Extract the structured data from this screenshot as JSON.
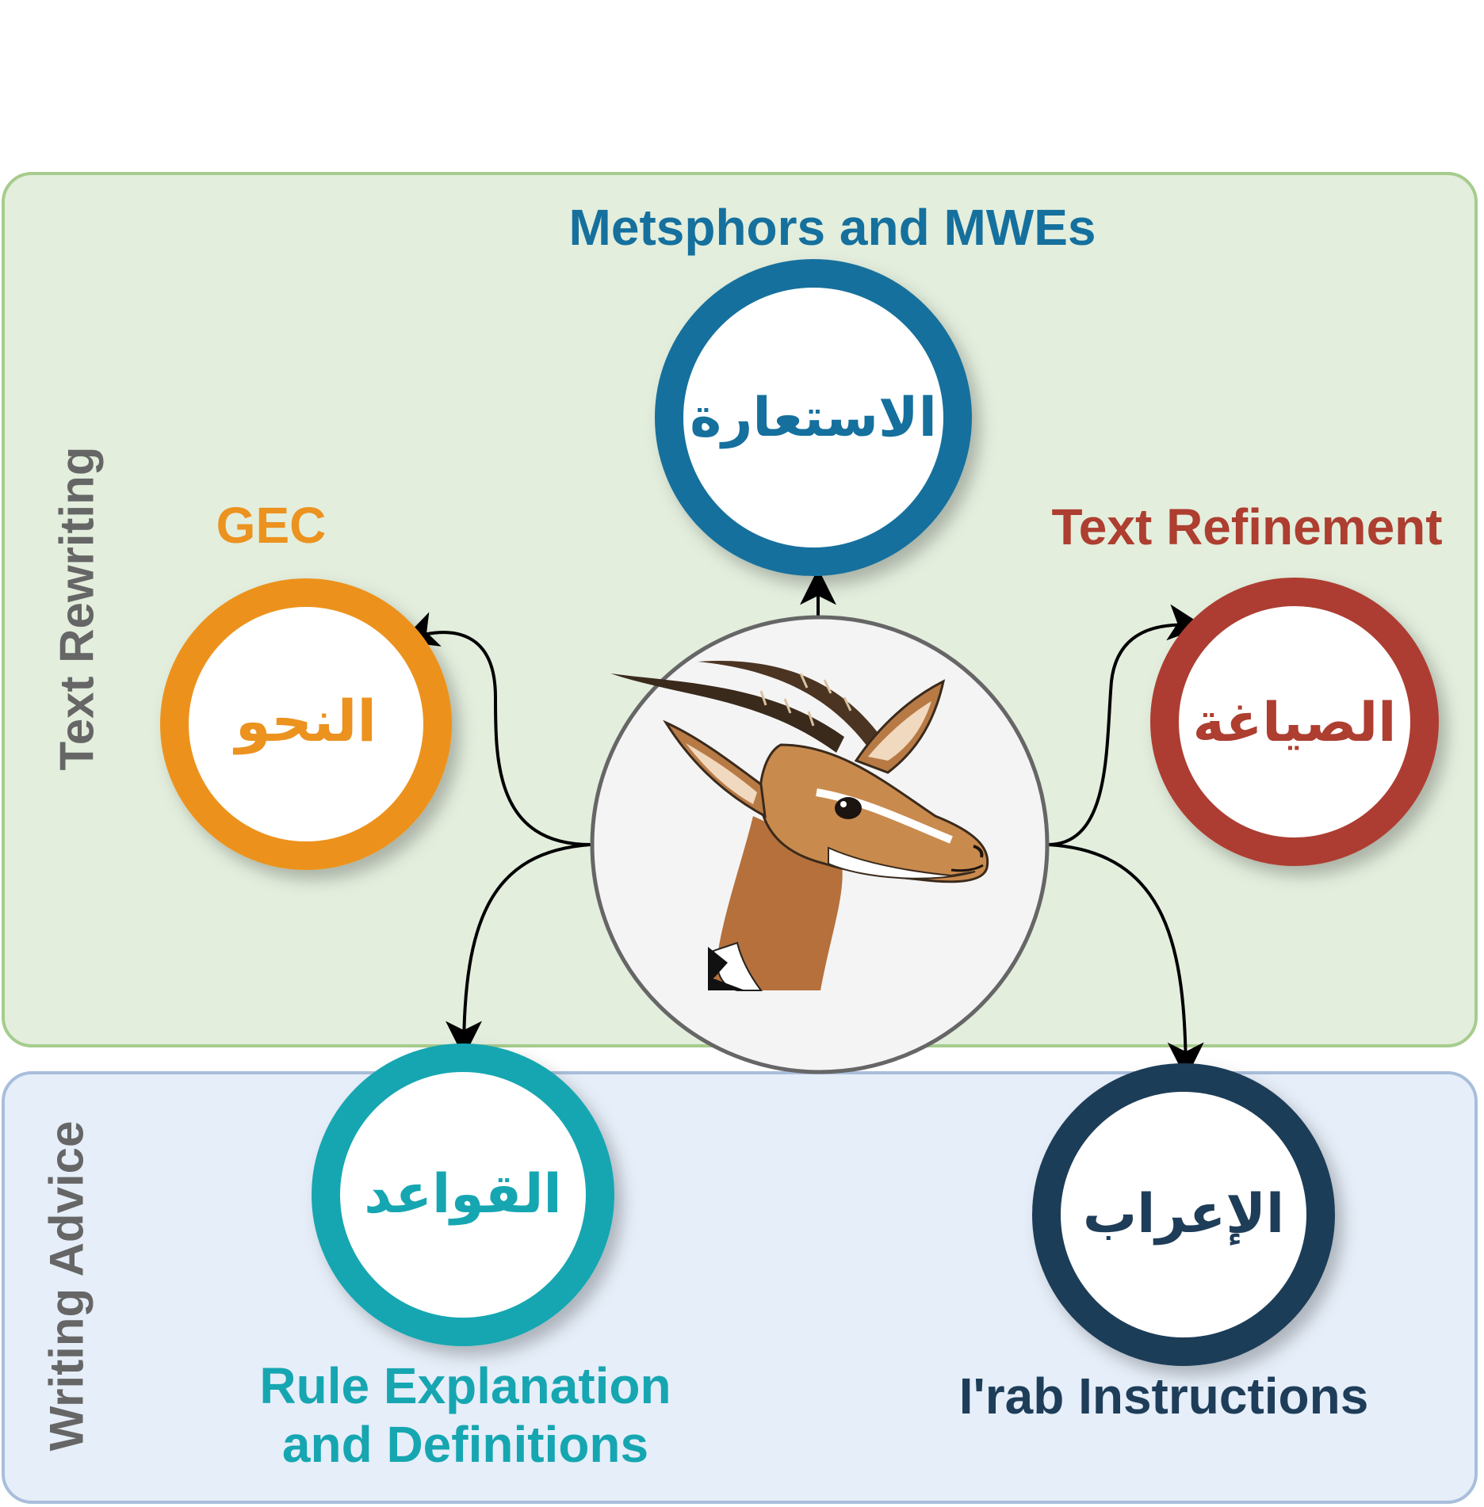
{
  "panels": {
    "rewriting_label": "Text Rewriting",
    "advice_label": "Writing Advice"
  },
  "nodes": [
    {
      "id": "metaphors",
      "title": "Metsphors and MWEs",
      "arabic": "الاستعارة",
      "color": "#15709d"
    },
    {
      "id": "gec",
      "title": "GEC",
      "arabic": "النحو",
      "color": "#ec921f"
    },
    {
      "id": "refinement",
      "title": "Text Refinement",
      "arabic": "الصياغة",
      "color": "#ad3e30"
    },
    {
      "id": "rules",
      "title": "Rule Explanation and Definitions",
      "title_lines": [
        "Rule Explanation",
        "and Definitions"
      ],
      "arabic": "القواعد",
      "color": "#16a6b1"
    },
    {
      "id": "irab",
      "title": "I'rab Instructions",
      "arabic": "الإعراب",
      "color": "#1e3d59"
    }
  ],
  "center": {
    "image": "gazelle-head-illustration"
  }
}
